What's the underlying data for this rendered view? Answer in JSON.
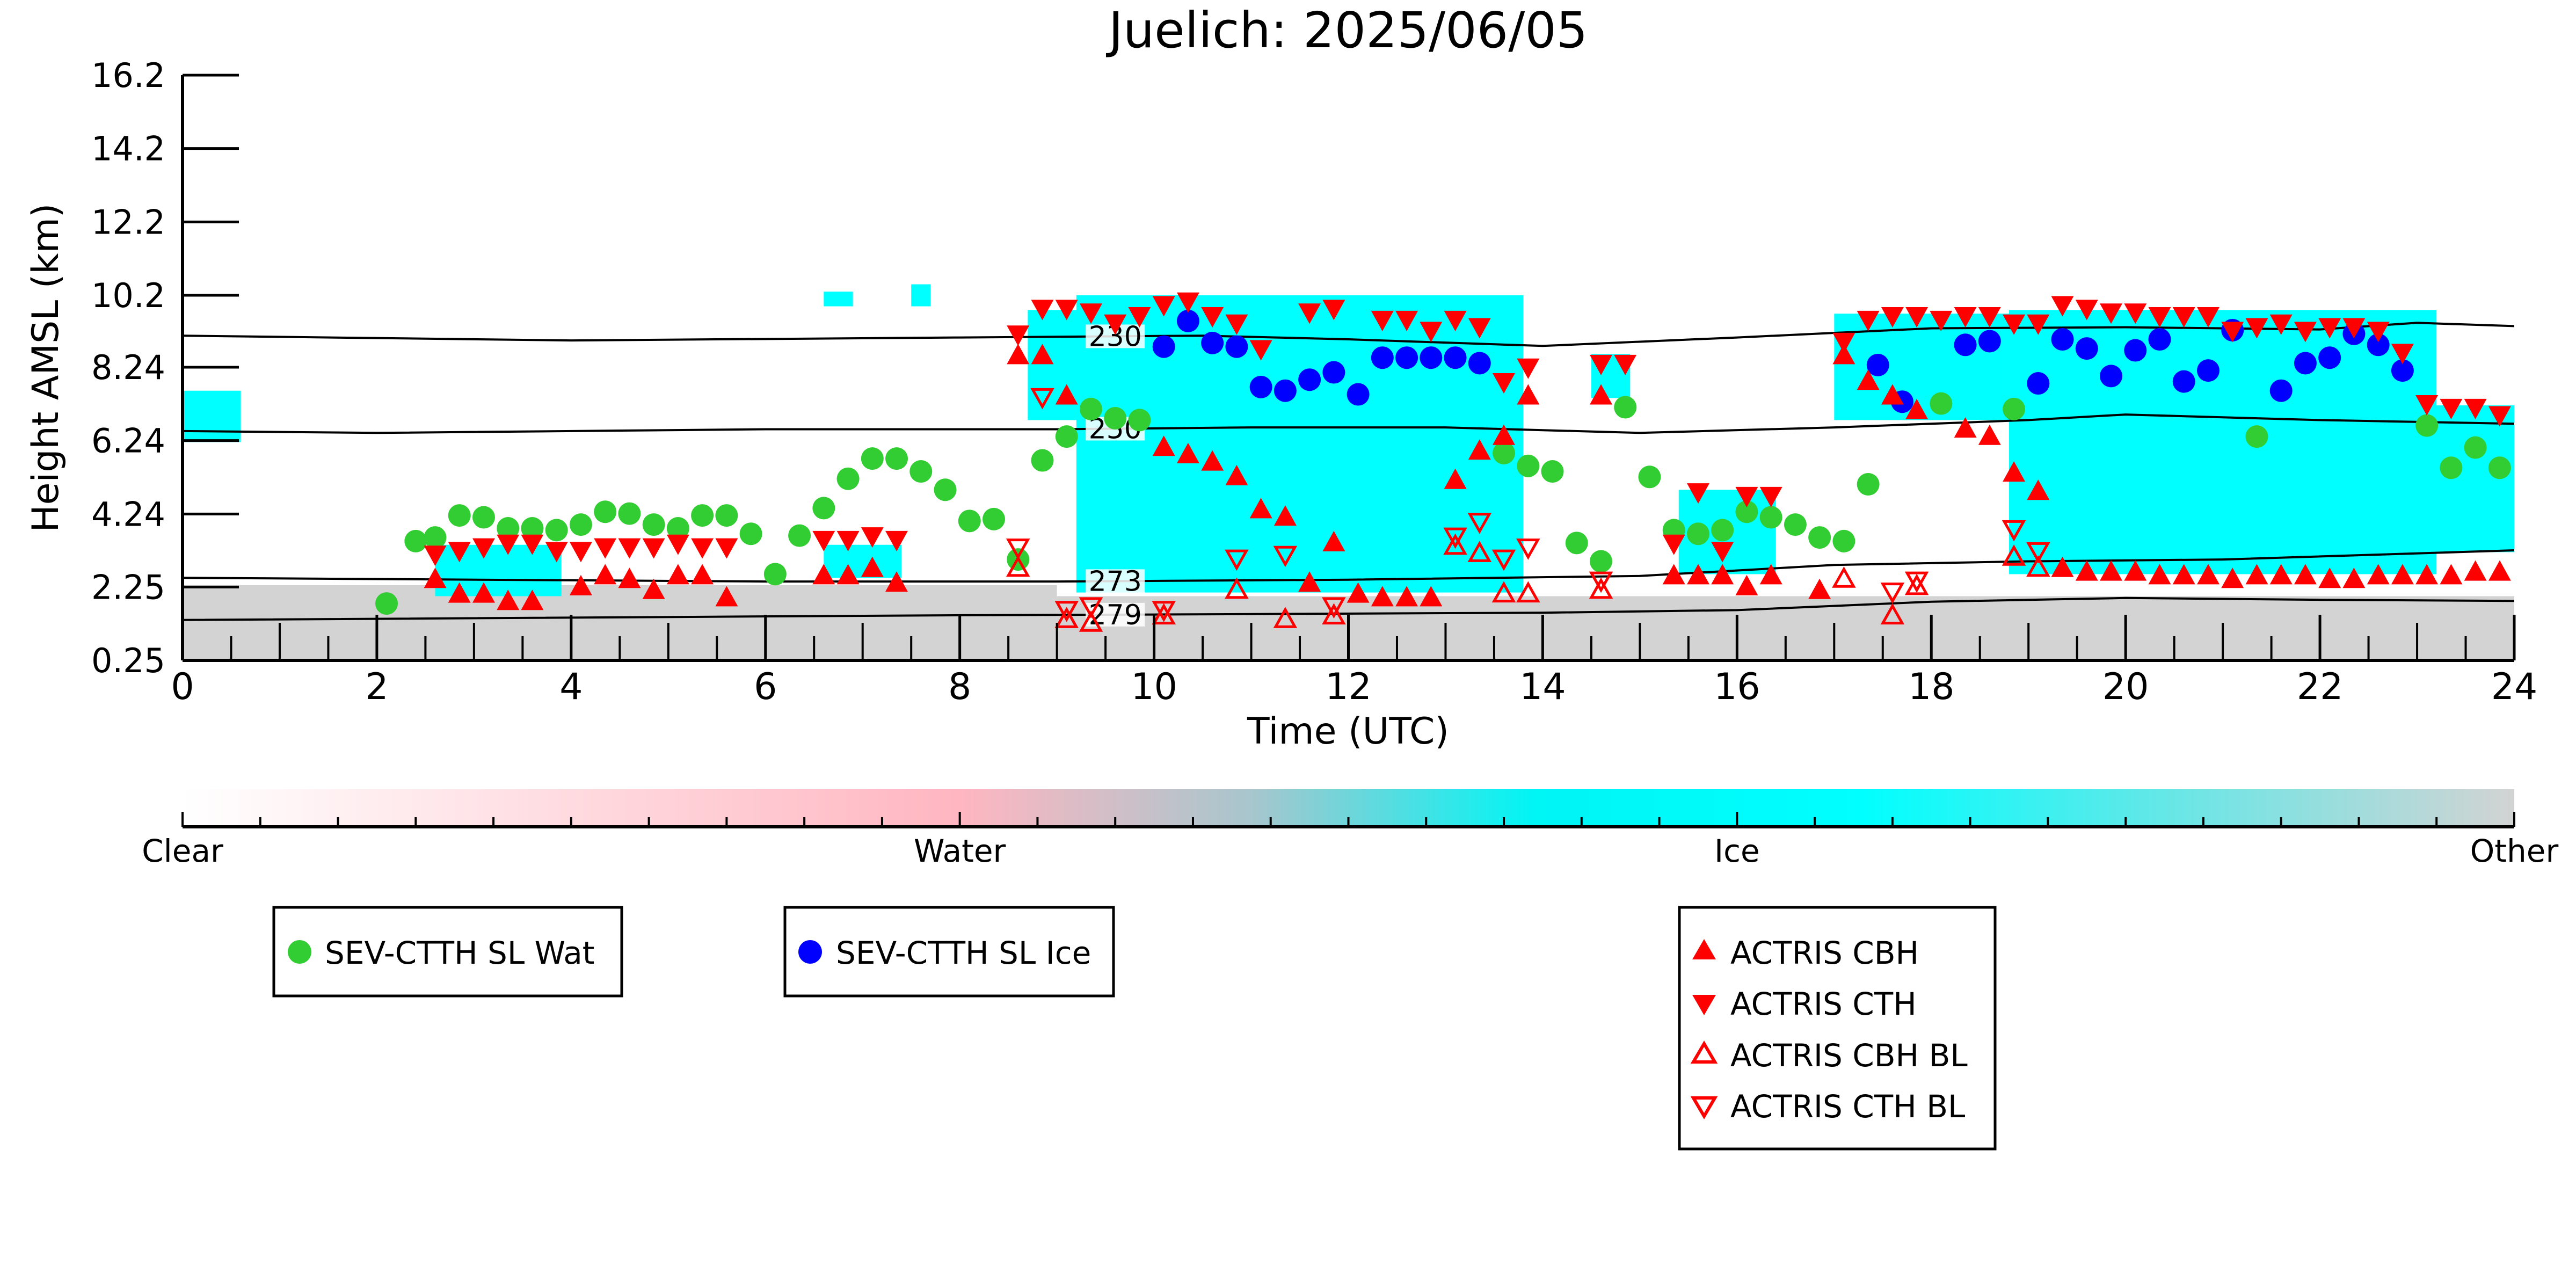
{
  "chart_data": {
    "type": "scatter",
    "title": "Juelich: 2025/06/05",
    "xlabel": "Time (UTC)",
    "ylabel": "Height AMSL (km)",
    "xlim": [
      0,
      24
    ],
    "ylim": [
      0.25,
      16.2
    ],
    "x_ticks": [
      "0",
      "2",
      "4",
      "6",
      "8",
      "10",
      "12",
      "14",
      "16",
      "18",
      "20",
      "22",
      "24"
    ],
    "y_ticks": [
      "0.25",
      "2.25",
      "4.24",
      "6.24",
      "8.24",
      "10.2",
      "12.2",
      "14.2",
      "16.2"
    ],
    "colorbar": {
      "labels": [
        "Clear",
        "Water",
        "Ice",
        "Other"
      ],
      "colors": [
        "#ffffff",
        "#ffb6c1",
        "#00ffff",
        "#d3d3d3"
      ]
    },
    "background_classes": {
      "ground_other": [
        {
          "x0": 0.0,
          "x1": 9.0,
          "y0": 0.25,
          "y1": 2.3
        },
        {
          "x0": 9.0,
          "x1": 24.0,
          "y0": 0.25,
          "y1": 2.0
        }
      ],
      "ice_regions": [
        {
          "x0": 0.0,
          "x1": 0.6,
          "y0": 6.2,
          "y1": 7.6
        },
        {
          "x0": 2.6,
          "x1": 3.9,
          "y0": 2.0,
          "y1": 3.4
        },
        {
          "x0": 6.6,
          "x1": 7.4,
          "y0": 2.5,
          "y1": 3.4
        },
        {
          "x0": 8.7,
          "x1": 9.3,
          "y0": 6.8,
          "y1": 9.8
        },
        {
          "x0": 9.2,
          "x1": 13.8,
          "y0": 2.1,
          "y1": 10.2
        },
        {
          "x0": 14.5,
          "x1": 14.9,
          "y0": 7.4,
          "y1": 8.6
        },
        {
          "x0": 15.4,
          "x1": 16.4,
          "y0": 2.6,
          "y1": 4.9
        },
        {
          "x0": 17.0,
          "x1": 18.8,
          "y0": 6.8,
          "y1": 9.7
        },
        {
          "x0": 18.8,
          "x1": 23.2,
          "y0": 2.6,
          "y1": 9.8
        },
        {
          "x0": 23.1,
          "x1": 24.0,
          "y0": 3.2,
          "y1": 7.2
        },
        {
          "x0": 6.6,
          "x1": 6.9,
          "y0": 9.9,
          "y1": 10.3
        },
        {
          "x0": 7.5,
          "x1": 7.7,
          "y0": 9.9,
          "y1": 10.5
        }
      ]
    },
    "isotherms": [
      {
        "label": "230",
        "label_x": 9.6,
        "points": [
          [
            0,
            9.1
          ],
          [
            4,
            8.97
          ],
          [
            8,
            9.05
          ],
          [
            10.5,
            9.1
          ],
          [
            12,
            9.0
          ],
          [
            14,
            8.82
          ],
          [
            16,
            9.05
          ],
          [
            18,
            9.3
          ],
          [
            20,
            9.33
          ],
          [
            22,
            9.27
          ],
          [
            23,
            9.45
          ],
          [
            24,
            9.36
          ]
        ]
      },
      {
        "label": "250",
        "label_x": 9.6,
        "points": [
          [
            0,
            6.5
          ],
          [
            2,
            6.45
          ],
          [
            6,
            6.55
          ],
          [
            9,
            6.55
          ],
          [
            11,
            6.6
          ],
          [
            13,
            6.6
          ],
          [
            15,
            6.45
          ],
          [
            17,
            6.6
          ],
          [
            19,
            6.8
          ],
          [
            20,
            6.95
          ],
          [
            22,
            6.8
          ],
          [
            24,
            6.7
          ]
        ]
      },
      {
        "label": "273",
        "label_x": 9.6,
        "points": [
          [
            0,
            2.5
          ],
          [
            6,
            2.4
          ],
          [
            9,
            2.4
          ],
          [
            12,
            2.45
          ],
          [
            15,
            2.55
          ],
          [
            17,
            2.85
          ],
          [
            19,
            2.95
          ],
          [
            21,
            3.0
          ],
          [
            24,
            3.25
          ]
        ]
      },
      {
        "label": "279",
        "label_x": 9.6,
        "points": [
          [
            0,
            1.35
          ],
          [
            8,
            1.48
          ],
          [
            10,
            1.5
          ],
          [
            14,
            1.55
          ],
          [
            16,
            1.62
          ],
          [
            18,
            1.85
          ],
          [
            20,
            1.95
          ],
          [
            22,
            1.9
          ],
          [
            24,
            1.87
          ]
        ]
      }
    ],
    "series": [
      {
        "name": "SEV-CTTH SL Wat",
        "color": "#32cd32",
        "marker": "circle",
        "x": [
          2.1,
          2.4,
          2.6,
          2.85,
          3.1,
          3.35,
          3.6,
          3.85,
          4.1,
          4.35,
          4.6,
          4.85,
          5.1,
          5.35,
          5.6,
          5.85,
          6.1,
          6.35,
          6.6,
          6.85,
          7.1,
          7.35,
          7.6,
          7.85,
          8.1,
          8.35,
          8.6,
          8.85,
          9.1,
          9.35,
          9.6,
          9.85,
          13.6,
          13.85,
          14.1,
          14.35,
          14.6,
          14.85,
          15.1,
          15.35,
          15.6,
          15.85,
          16.1,
          16.35,
          16.6,
          16.85,
          17.1,
          17.35,
          18.1,
          18.85,
          21.35,
          23.1,
          23.35,
          23.6,
          23.85
        ],
        "y": [
          1.8,
          3.5,
          3.6,
          4.2,
          4.15,
          3.85,
          3.85,
          3.8,
          3.95,
          4.3,
          4.25,
          3.95,
          3.85,
          4.2,
          4.2,
          3.7,
          2.6,
          3.65,
          4.4,
          5.2,
          5.75,
          5.75,
          5.4,
          4.9,
          4.05,
          4.1,
          3.0,
          5.7,
          6.35,
          7.1,
          6.85,
          6.8,
          5.9,
          5.55,
          5.4,
          3.45,
          2.95,
          7.15,
          5.25,
          3.8,
          3.7,
          3.8,
          4.3,
          4.15,
          3.95,
          3.6,
          3.5,
          5.05,
          7.25,
          7.1,
          6.35,
          6.65,
          5.5,
          6.05,
          5.5
        ]
      },
      {
        "name": "SEV-CTTH SL Ice",
        "color": "#0000ff",
        "marker": "circle",
        "x": [
          10.1,
          10.35,
          10.6,
          10.85,
          11.1,
          11.35,
          11.6,
          11.85,
          12.1,
          12.35,
          12.6,
          12.85,
          13.1,
          13.35,
          17.45,
          17.7,
          18.35,
          18.6,
          19.1,
          19.35,
          19.6,
          19.85,
          20.1,
          20.35,
          20.6,
          20.85,
          21.1,
          21.6,
          21.85,
          22.1,
          22.35,
          22.6,
          22.85
        ],
        "y": [
          8.8,
          9.5,
          8.9,
          8.8,
          7.7,
          7.6,
          7.9,
          8.1,
          7.5,
          8.5,
          8.5,
          8.5,
          8.5,
          8.35,
          8.3,
          7.3,
          8.85,
          8.95,
          7.8,
          9.0,
          8.75,
          8.0,
          8.7,
          9.0,
          7.85,
          8.15,
          9.25,
          7.6,
          8.35,
          8.5,
          9.15,
          8.85,
          8.15
        ]
      },
      {
        "name": "ACTRIS CBH",
        "color": "#ff0000",
        "marker": "triangle-up",
        "x": [
          2.6,
          2.85,
          3.1,
          3.35,
          3.6,
          4.1,
          4.35,
          4.6,
          4.85,
          5.1,
          5.35,
          5.6,
          6.6,
          6.85,
          7.1,
          7.35,
          8.6,
          8.85,
          9.1,
          10.1,
          10.35,
          10.6,
          10.85,
          11.1,
          11.35,
          11.6,
          11.85,
          12.1,
          12.35,
          12.6,
          12.85,
          13.1,
          13.35,
          13.6,
          13.85,
          14.6,
          15.35,
          15.6,
          15.85,
          16.1,
          16.35,
          16.85,
          17.1,
          17.35,
          17.6,
          17.85,
          18.35,
          18.6,
          18.85,
          19.1,
          19.35,
          19.6,
          19.85,
          20.1,
          20.35,
          20.6,
          20.85,
          21.1,
          21.35,
          21.6,
          21.85,
          22.1,
          22.35,
          22.6,
          22.85,
          23.1,
          23.35,
          23.6,
          23.85
        ],
        "y": [
          2.5,
          2.1,
          2.1,
          1.9,
          1.9,
          2.3,
          2.6,
          2.5,
          2.2,
          2.6,
          2.6,
          2.0,
          2.6,
          2.6,
          2.8,
          2.4,
          8.6,
          8.6,
          7.5,
          6.1,
          5.9,
          5.7,
          5.3,
          4.4,
          4.2,
          2.4,
          3.5,
          2.1,
          2.0,
          2.0,
          2.0,
          5.2,
          6.0,
          6.4,
          7.5,
          7.5,
          2.6,
          2.6,
          2.6,
          2.3,
          2.6,
          2.2,
          8.6,
          7.9,
          7.5,
          7.1,
          6.6,
          6.4,
          5.4,
          4.9,
          2.8,
          2.7,
          2.7,
          2.7,
          2.6,
          2.6,
          2.6,
          2.5,
          2.6,
          2.6,
          2.6,
          2.5,
          2.5,
          2.6,
          2.6,
          2.6,
          2.6,
          2.7,
          2.7
        ]
      },
      {
        "name": "ACTRIS CTH",
        "color": "#ff0000",
        "marker": "triangle-down",
        "x": [
          2.6,
          2.85,
          3.1,
          3.35,
          3.6,
          3.85,
          4.1,
          4.35,
          4.6,
          4.85,
          5.1,
          5.35,
          5.6,
          6.6,
          6.85,
          7.1,
          7.35,
          8.6,
          8.85,
          9.1,
          9.35,
          9.6,
          9.85,
          10.1,
          10.35,
          10.6,
          10.85,
          11.1,
          11.6,
          11.85,
          12.35,
          12.6,
          12.85,
          13.1,
          13.35,
          13.6,
          13.85,
          14.6,
          14.85,
          15.35,
          15.6,
          15.85,
          16.1,
          16.35,
          17.1,
          17.35,
          17.6,
          17.85,
          18.1,
          18.35,
          18.6,
          18.85,
          19.1,
          19.35,
          19.6,
          19.85,
          20.1,
          20.35,
          20.6,
          20.85,
          21.1,
          21.35,
          21.6,
          21.85,
          22.1,
          22.35,
          22.6,
          22.85,
          23.1,
          23.35,
          23.6,
          23.85
        ],
        "y": [
          3.1,
          3.2,
          3.3,
          3.4,
          3.4,
          3.2,
          3.2,
          3.3,
          3.3,
          3.3,
          3.4,
          3.3,
          3.3,
          3.5,
          3.5,
          3.6,
          3.5,
          9.1,
          9.8,
          9.8,
          9.7,
          9.4,
          9.6,
          9.9,
          10.0,
          9.6,
          9.4,
          8.7,
          9.7,
          9.8,
          9.5,
          9.5,
          9.2,
          9.5,
          9.3,
          7.8,
          8.2,
          8.3,
          8.3,
          3.4,
          4.8,
          3.2,
          4.7,
          4.7,
          8.9,
          9.5,
          9.6,
          9.6,
          9.5,
          9.6,
          9.6,
          9.4,
          9.4,
          9.9,
          9.8,
          9.7,
          9.7,
          9.6,
          9.6,
          9.6,
          9.2,
          9.3,
          9.4,
          9.2,
          9.3,
          9.3,
          9.2,
          8.6,
          7.2,
          7.1,
          7.1,
          6.9
        ]
      },
      {
        "name": "ACTRIS CBH BL",
        "color": "#ff0000",
        "marker": "triangle-up-open",
        "x": [
          8.6,
          9.1,
          9.35,
          10.1,
          10.85,
          11.35,
          11.85,
          13.1,
          13.35,
          13.6,
          13.85,
          14.6,
          17.1,
          17.6,
          17.85,
          18.85,
          19.1
        ],
        "y": [
          2.8,
          1.4,
          1.3,
          1.5,
          2.2,
          1.4,
          1.5,
          3.4,
          3.2,
          2.1,
          2.1,
          2.2,
          2.5,
          1.5,
          2.3,
          3.1,
          2.8
        ],
        "marker_size": 9
      },
      {
        "name": "ACTRIS CTH BL",
        "color": "#ff0000",
        "marker": "triangle-down-open",
        "x": [
          8.6,
          8.85,
          9.1,
          9.35,
          10.1,
          10.85,
          11.35,
          11.85,
          13.1,
          13.35,
          13.6,
          13.85,
          14.6,
          17.6,
          17.85,
          18.85,
          19.1
        ],
        "y": [
          3.3,
          7.4,
          1.6,
          1.7,
          1.6,
          3.0,
          3.1,
          1.7,
          3.6,
          4.0,
          3.0,
          3.3,
          2.4,
          2.1,
          2.4,
          3.8,
          3.2
        ],
        "marker_size": 9
      }
    ]
  }
}
